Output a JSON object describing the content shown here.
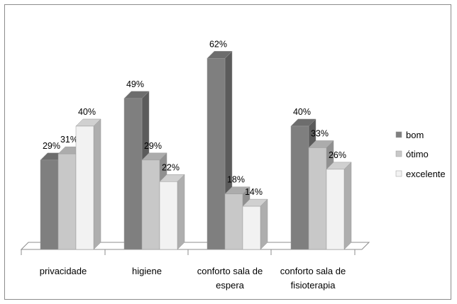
{
  "chart_data": {
    "type": "bar",
    "categories": [
      "privacidade",
      "higiene",
      "conforto sala de espera",
      "conforto sala de fisioterapia"
    ],
    "category_lines": [
      [
        "privacidade"
      ],
      [
        "higiene"
      ],
      [
        "conforto sala de",
        "espera"
      ],
      [
        "conforto sala de",
        "fisioterapia"
      ]
    ],
    "series": [
      {
        "name": "bom",
        "values": [
          29,
          49,
          62,
          40
        ],
        "labels": [
          "29%",
          "49%",
          "62%",
          "40%"
        ],
        "color": "#7f7f7f"
      },
      {
        "name": "ótimo",
        "values": [
          31,
          29,
          18,
          33
        ],
        "labels": [
          "31%",
          "29%",
          "18%",
          "33%"
        ],
        "color": "#c8c8c8"
      },
      {
        "name": "excelente",
        "values": [
          40,
          22,
          14,
          26
        ],
        "labels": [
          "40%",
          "22%",
          "14%",
          "26%"
        ],
        "color": "#f2f2f2"
      }
    ],
    "unit": "%",
    "ylim": [
      0,
      70
    ],
    "grid": false,
    "legend_position": "right",
    "style": "3d-clustered-column",
    "title": "",
    "xlabel": "",
    "ylabel": ""
  }
}
